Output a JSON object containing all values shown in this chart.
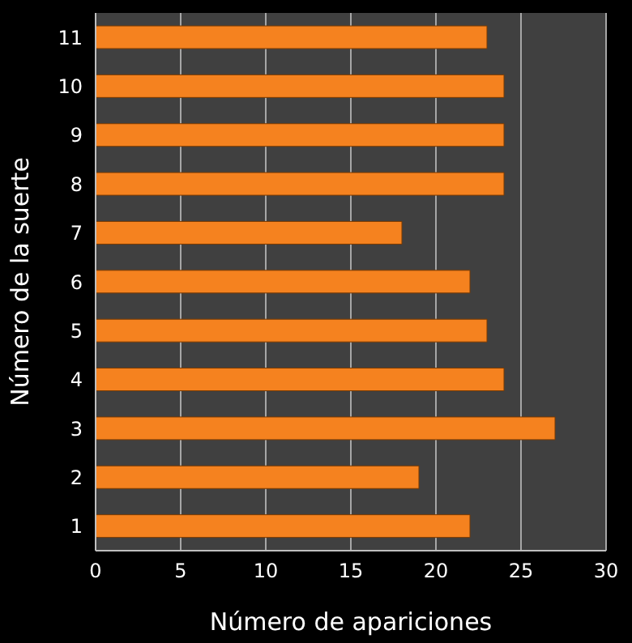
{
  "chart_data": {
    "type": "bar",
    "orientation": "horizontal",
    "xlabel": "Número de apariciones",
    "ylabel": "Número de la suerte",
    "categories": [
      "11",
      "10",
      "9",
      "8",
      "7",
      "6",
      "5",
      "4",
      "3",
      "2",
      "1"
    ],
    "values": [
      23,
      24,
      24,
      24,
      18,
      22,
      23,
      24,
      27,
      19,
      22
    ],
    "color": "#f5821f",
    "xlim": [
      0,
      30
    ],
    "xticks": [
      0,
      5,
      10,
      15,
      20,
      25,
      30
    ],
    "grid": "x"
  }
}
